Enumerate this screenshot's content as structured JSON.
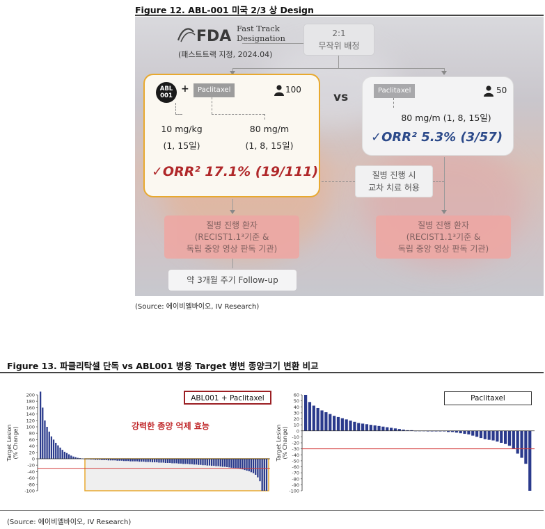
{
  "figure12": {
    "title": "Figure 12. ABL-001 미국 2/3 상 Design",
    "fda_title_line1": "Fast Track",
    "fda_title_line2": "Designation",
    "fda_logo_text": "FDA",
    "fda_sub": "(패스트트랙 지정, 2024.04)",
    "randomization_line1": "2:1",
    "randomization_line2": "무작위 배정",
    "vs": "vs",
    "left_arm": {
      "drug_line1": "ABL",
      "drug_line2": "001",
      "plus": "+",
      "partner": "Paclitaxel",
      "patients": "100",
      "dose1_line1": "10 mg/kg",
      "dose1_line2": "(1, 15일)",
      "dose2_line1": "80 mg/m",
      "dose2_line2": "(1, 8, 15일)",
      "orr": "✓ORR² 17.1% (19/111)"
    },
    "right_arm": {
      "drug": "Paclitaxel",
      "patients": "50",
      "dose": "80 mg/m (1, 8, 15일)",
      "orr": "✓ORR² 5.3% (3/57)"
    },
    "crossover_line1": "질병 진행 시",
    "crossover_line2": "교차 치료 허용",
    "progression_line1": "질병 진행 환자",
    "progression_line2": "(RECIST1.1³기준 &",
    "progression_line3": "독립 중앙 영상 판독 기관)",
    "followup": "약 3개월 주기 Follow-up",
    "source": "(Source: 에이비엘바이오, IV Research)",
    "colors": {
      "accent_orange": "#e8a92f",
      "orr_red": "#b0282a",
      "orr_blue": "#2c4a8a",
      "progression_pink": "#eda8a4"
    }
  },
  "figure13": {
    "title": "Figure 13. 파클리탁셀 단독 vs ABL001 병용 Target 병변 종양크기 변환 비교",
    "source": "(Source: 에이비엘바이오, IV Research)",
    "annotation": "강력한 종양 억제 효능",
    "ylabel_line1": "Target Lesion",
    "ylabel_line2": "(% Change)"
  },
  "chart_data": [
    {
      "type": "bar",
      "legend": "ABL001 + Paclitaxel",
      "yticks": [
        "200",
        "180",
        "160",
        "140",
        "120",
        "100",
        "80",
        "60",
        "40",
        "20",
        "0",
        "-20",
        "-40",
        "-60",
        "-80",
        "-100"
      ],
      "ylim": [
        -100,
        200
      ],
      "reference_line": -30,
      "values": [
        210,
        160,
        120,
        100,
        85,
        70,
        60,
        50,
        42,
        35,
        28,
        22,
        18,
        14,
        10,
        7,
        5,
        3,
        2,
        1,
        0,
        -1,
        -1,
        -2,
        -2,
        -3,
        -3,
        -3,
        -4,
        -4,
        -4,
        -5,
        -5,
        -5,
        -5,
        -6,
        -6,
        -6,
        -7,
        -7,
        -7,
        -8,
        -8,
        -8,
        -8,
        -9,
        -9,
        -9,
        -10,
        -10,
        -10,
        -11,
        -11,
        -11,
        -12,
        -12,
        -12,
        -13,
        -13,
        -13,
        -14,
        -14,
        -14,
        -15,
        -15,
        -16,
        -16,
        -16,
        -17,
        -17,
        -18,
        -18,
        -19,
        -19,
        -20,
        -20,
        -21,
        -21,
        -22,
        -22,
        -23,
        -23,
        -24,
        -25,
        -25,
        -26,
        -27,
        -28,
        -29,
        -30,
        -31,
        -32,
        -33,
        -35,
        -37,
        -39,
        -42,
        -45,
        -50,
        -58,
        -70,
        -100,
        -100,
        -100
      ]
    },
    {
      "type": "bar",
      "legend": "Paclitaxel",
      "yticks": [
        "60",
        "50",
        "40",
        "30",
        "20",
        "10",
        "0",
        "-10",
        "-20",
        "-30",
        "-40",
        "-50",
        "-60",
        "-70",
        "-80",
        "-90",
        "-100"
      ],
      "ylim": [
        -100,
        60
      ],
      "reference_line": -30,
      "values": [
        60,
        48,
        42,
        38,
        34,
        31,
        28,
        25,
        23,
        21,
        19,
        17,
        15,
        13,
        12,
        11,
        10,
        9,
        8,
        7,
        6,
        5,
        4,
        3,
        2,
        1,
        1,
        0,
        0,
        0,
        -1,
        -1,
        -1,
        -1,
        -1,
        -2,
        -2,
        -3,
        -4,
        -5,
        -6,
        -8,
        -10,
        -12,
        -14,
        -15,
        -16,
        -18,
        -20,
        -22,
        -25,
        -30,
        -38,
        -45,
        -55,
        -100
      ]
    }
  ]
}
